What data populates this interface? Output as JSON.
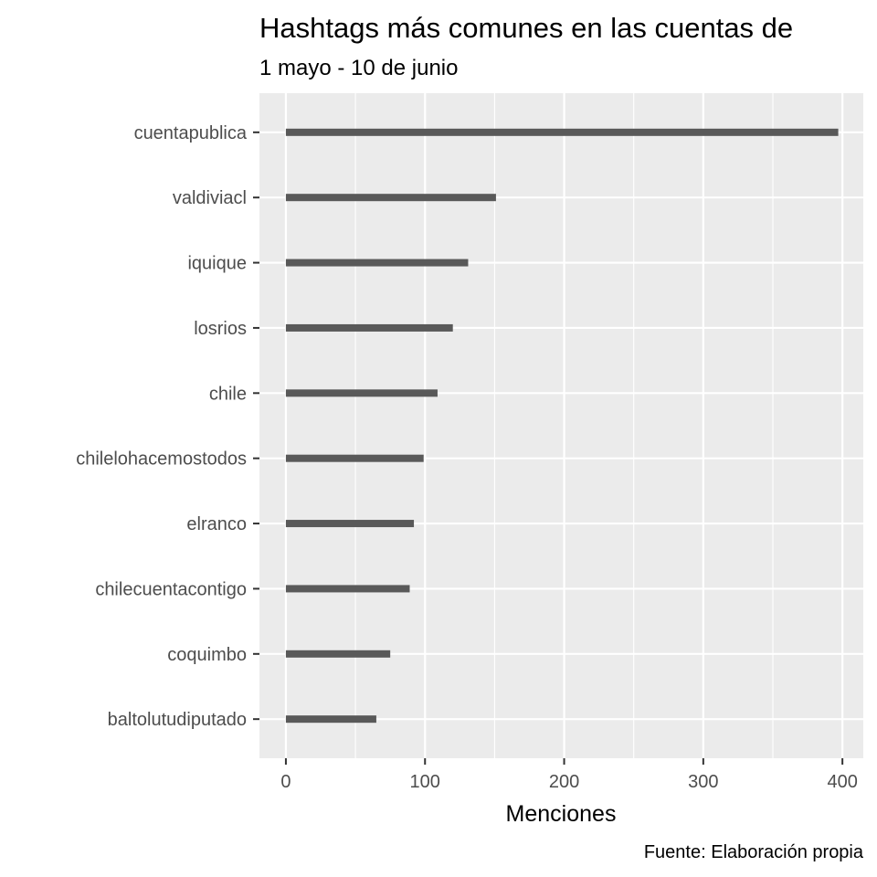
{
  "chart_data": {
    "type": "bar",
    "orientation": "horizontal",
    "title": "Hashtags más comunes en las cuentas de",
    "subtitle": "1 mayo - 10 de junio",
    "xlabel": "Menciones",
    "ylabel": "",
    "caption": "Fuente: Elaboración propia",
    "categories": [
      "cuentapublica",
      "valdiviacl",
      "iquique",
      "losrios",
      "chile",
      "chilelohacemostodos",
      "elranco",
      "chilecuentacontigo",
      "coquimbo",
      "baltolutudiputado"
    ],
    "values": [
      397,
      151,
      131,
      120,
      109,
      99,
      92,
      89,
      75,
      65
    ],
    "xlim": [
      -19,
      415
    ],
    "xticks": [
      0,
      100,
      200,
      300,
      400
    ],
    "grid": true,
    "legend": "none",
    "colors": {
      "bar": "#595959",
      "panel": "#ebebeb",
      "grid": "#ffffff",
      "tick_text": "#4d4d4d"
    }
  }
}
